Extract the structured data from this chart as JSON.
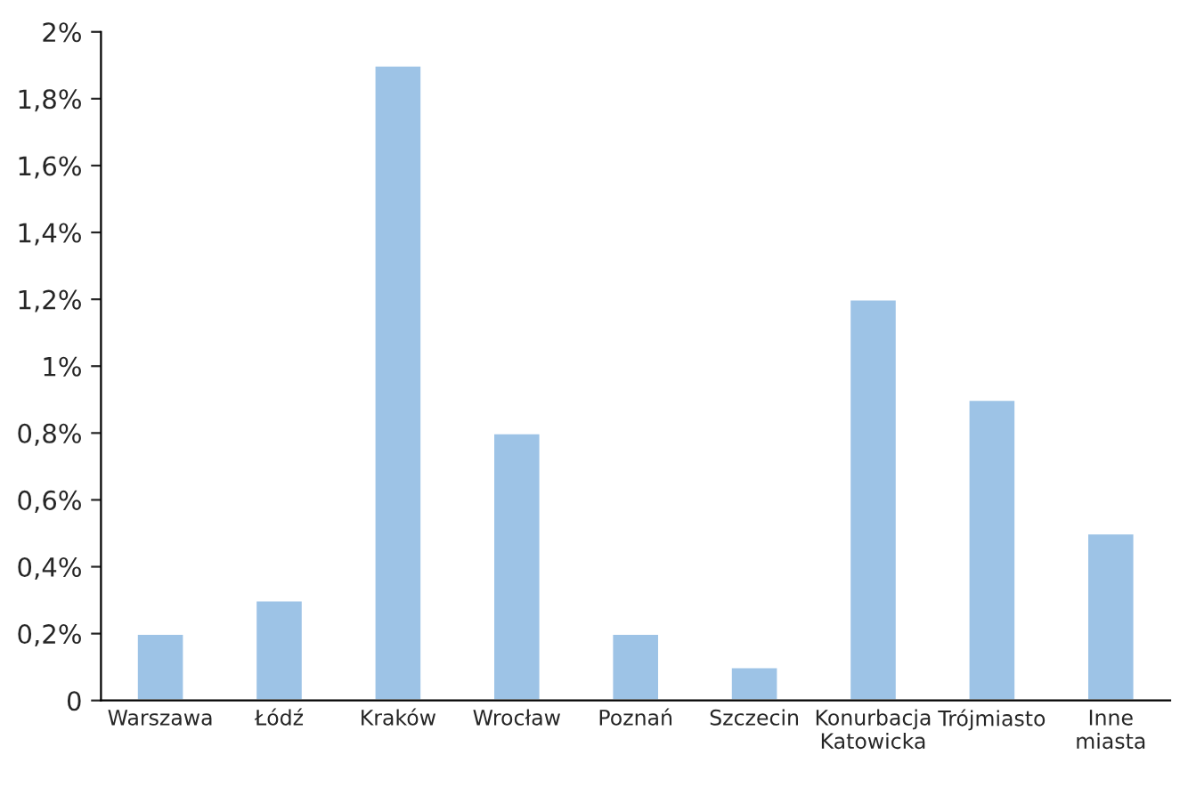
{
  "chart_data": {
    "type": "bar",
    "categories": [
      "Warszawa",
      "Łódź",
      "Kraków",
      "Wrocław",
      "Poznań",
      "Szczecin",
      "Konurbacja\nKatowicka",
      "Trójmiasto",
      "Inne\nmiasta"
    ],
    "values": [
      0.2,
      0.3,
      1.9,
      0.8,
      0.2,
      0.1,
      1.2,
      0.9,
      0.5
    ],
    "color": "#9dc3e6",
    "ylim": [
      0,
      2
    ],
    "yticks": [
      {
        "value": 0,
        "label": "0"
      },
      {
        "value": 0.2,
        "label": "0,2%"
      },
      {
        "value": 0.4,
        "label": "0,4%"
      },
      {
        "value": 0.6,
        "label": "0,6%"
      },
      {
        "value": 0.8,
        "label": "0,8%"
      },
      {
        "value": 1,
        "label": "1%"
      },
      {
        "value": 1.2,
        "label": "1,2%"
      },
      {
        "value": 1.4,
        "label": "1,4%"
      },
      {
        "value": 1.6,
        "label": "1,6%"
      },
      {
        "value": 1.8,
        "label": "1,8%"
      },
      {
        "value": 2,
        "label": "2%"
      }
    ],
    "grid": false
  }
}
